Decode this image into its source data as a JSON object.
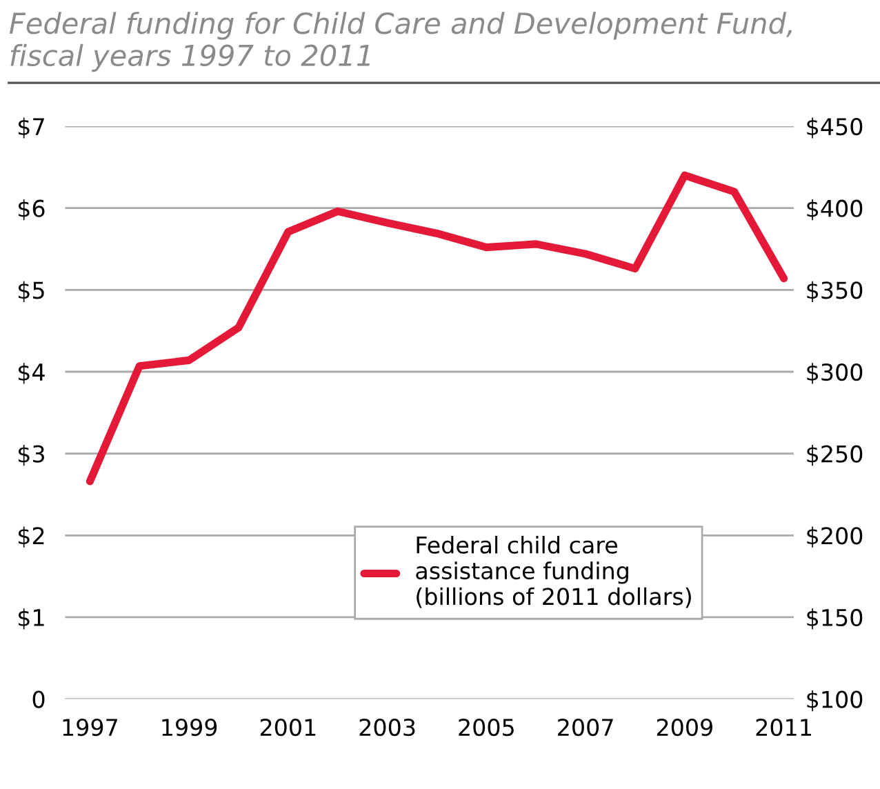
{
  "chart_data": {
    "type": "line",
    "title": "Federal funding for Child Care and Development Fund,\nfiscal years 1997 to 2011",
    "x": [
      1997,
      1998,
      1999,
      2000,
      2001,
      2002,
      2003,
      2004,
      2005,
      2006,
      2007,
      2008,
      2009,
      2010,
      2011
    ],
    "series": [
      {
        "name": "Federal child care\nassistance funding\n(billions of 2011 dollars)",
        "color": "#e31937",
        "values": [
          2.66,
          4.07,
          4.14,
          4.54,
          5.71,
          5.96,
          5.82,
          5.69,
          5.52,
          5.56,
          5.44,
          5.26,
          6.4,
          6.2,
          5.14
        ]
      }
    ],
    "xlim": [
      1996.5,
      2011.2
    ],
    "xticks": [
      1997,
      1999,
      2001,
      2003,
      2005,
      2007,
      2009,
      2011
    ],
    "ylim": [
      0,
      7
    ],
    "yticks": [
      0,
      {
        "value": 1,
        "label": "$1"
      },
      {
        "value": 2,
        "label": "$2"
      },
      {
        "value": 3,
        "label": "$3"
      },
      {
        "value": 4,
        "label": "$4"
      },
      {
        "value": 5,
        "label": "$5"
      },
      {
        "value": 6,
        "label": "$6"
      },
      {
        "value": 7,
        "label": "$7"
      }
    ],
    "y2lim": [
      100,
      450
    ],
    "y2ticks": [
      {
        "value": 100,
        "label": "$100"
      },
      {
        "value": 150,
        "label": "$150"
      },
      {
        "value": 200,
        "label": "$200"
      },
      {
        "value": 250,
        "label": "$250"
      },
      {
        "value": 300,
        "label": "$300"
      },
      {
        "value": 350,
        "label": "$350"
      },
      {
        "value": 400,
        "label": "$400"
      },
      {
        "value": 450,
        "label": "$450"
      }
    ],
    "grid": "y",
    "legend": "lower right",
    "marker": "none",
    "line_style": "solid"
  }
}
